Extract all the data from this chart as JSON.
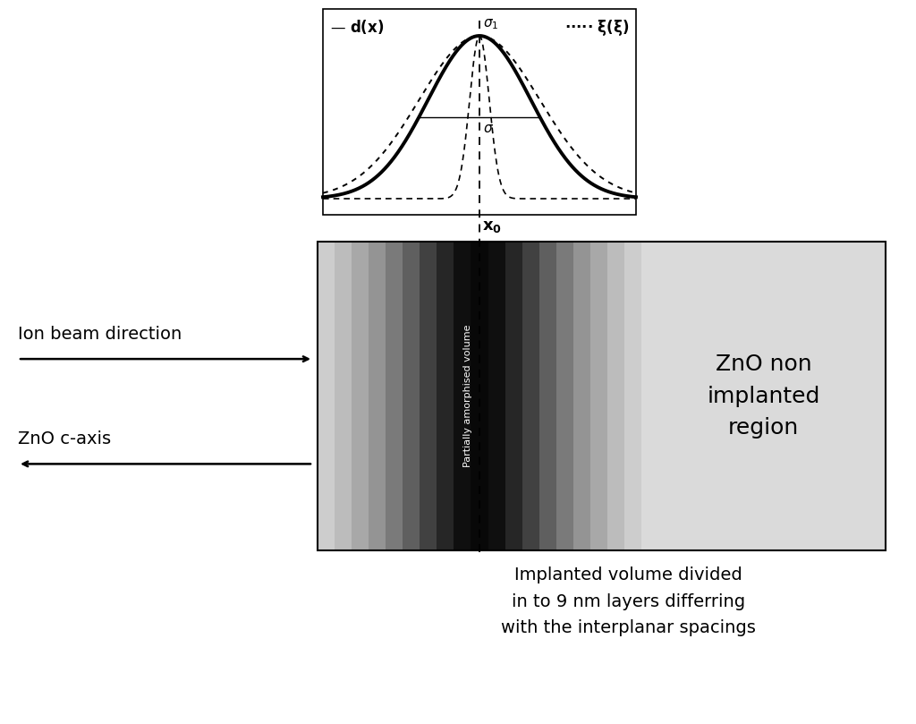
{
  "layer_grays": [
    205,
    188,
    168,
    148,
    122,
    95,
    65,
    38,
    15,
    8,
    15,
    38,
    65,
    95,
    122,
    148,
    168,
    188,
    205
  ],
  "non_implanted_gray": 218,
  "figure_bg": "#e8e8e8",
  "zno_label": "ZnO non\nimplanted\nregion",
  "bottom_label": "Implanted volume divided\nin to 9 nm layers differring\nwith the interplanar spacings",
  "ion_beam_label": "Ion beam direction",
  "c_axis_label": "ZnO c-axis",
  "partly_amorphous_label": "Partially amorphised volume",
  "x0_label": "x₀",
  "sigma_label": "σ",
  "sigma1_label": "σ₁",
  "dx_label": "d(x)",
  "xi_label": "ξ(ξ)"
}
